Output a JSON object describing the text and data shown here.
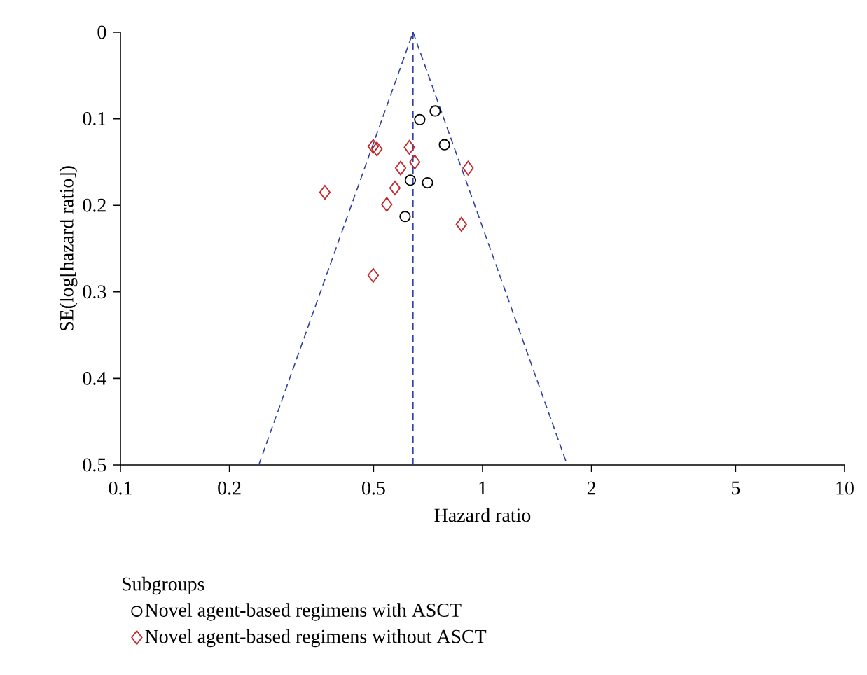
{
  "chart_data": {
    "type": "scatter",
    "xlabel": "Hazard ratio",
    "ylabel": "SE(log[hazard ratio])",
    "legend_title": "Subgroups",
    "legend": "bottom",
    "log": "x",
    "xlim": [
      0.1,
      10
    ],
    "xticks": [
      0.1,
      0.2,
      0.5,
      1,
      2,
      5,
      10
    ],
    "ylim": [
      0.5,
      0
    ],
    "yticks": [
      0,
      0.1,
      0.2,
      0.3,
      0.4,
      0.5
    ],
    "ref_lines": [
      {
        "axis": "x",
        "value": 0.643,
        "color": "#2e3fa0",
        "line_style": "dashed"
      }
    ],
    "series": [
      {
        "name": "Novel agent-based regimens with ASCT",
        "color": "#000000",
        "marker": "circle",
        "x": [
          0.74,
          0.671,
          0.785,
          0.632,
          0.705,
          0.611
        ],
        "values": [
          0.091,
          0.101,
          0.13,
          0.171,
          0.174,
          0.213
        ]
      },
      {
        "name": "Novel agent-based regimens without ASCT",
        "color": "#c0272d",
        "marker": "diamond",
        "x": [
          0.499,
          0.511,
          0.628,
          0.65,
          0.594,
          0.912,
          0.573,
          0.367,
          0.544,
          0.874,
          0.499
        ],
        "values": [
          0.132,
          0.135,
          0.133,
          0.15,
          0.157,
          0.157,
          0.18,
          0.185,
          0.199,
          0.222,
          0.281
        ]
      },
      {
        "type": "line",
        "color": "#2e3fa0",
        "line_style": "dashed",
        "marker": "none",
        "x": [
          0.241,
          0.643,
          1.714
        ],
        "values": [
          0.5,
          0,
          0.5
        ]
      }
    ]
  }
}
